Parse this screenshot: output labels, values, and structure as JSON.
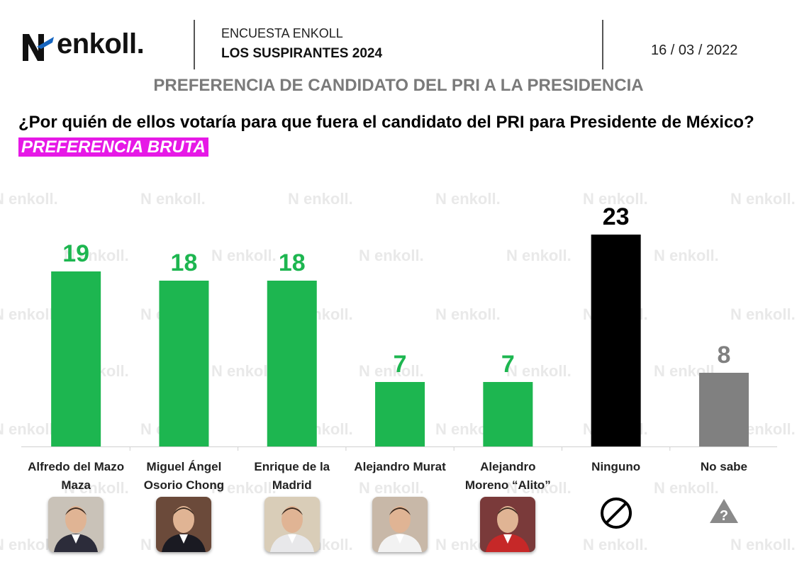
{
  "brand": {
    "logo_text": "enkoll."
  },
  "header": {
    "survey_name": "ENCUESTA ENKOLL",
    "survey_sub": "LOS SUSPIRANTES 2024",
    "date": "16 / 03 / 2022"
  },
  "subtitle": "PREFERENCIA DE CANDIDATO DEL PRI A LA PRESIDENCIA",
  "question": {
    "text": "¿Por quién de ellos votaría para que fuera el candidato del PRI para Presidente de México?",
    "tag": "PREFERENCIA BRUTA"
  },
  "watermark_text": "enkoll.",
  "colors": {
    "green": "#1db650",
    "black": "#000000",
    "gray": "#808080",
    "magenta": "#e619e6"
  },
  "chart_data": {
    "type": "bar",
    "categories": [
      "Alfredo del Mazo Maza",
      "Miguel Ángel Osorio Chong",
      "Enrique de la Madrid",
      "Alejandro Murat",
      "Alejandro Moreno “Alito”",
      "Ninguno",
      "No sabe"
    ],
    "label_lines": [
      [
        "Alfredo del Mazo",
        "Maza"
      ],
      [
        "Miguel Ángel",
        "Osorio Chong"
      ],
      [
        "Enrique de la",
        "Madrid"
      ],
      [
        "Alejandro Murat"
      ],
      [
        "Alejandro",
        "Moreno “Alito”"
      ],
      [
        "Ninguno"
      ],
      [
        "No sabe"
      ]
    ],
    "values": [
      19,
      18,
      18,
      7,
      7,
      23,
      8
    ],
    "bar_colors": [
      "#1db650",
      "#1db650",
      "#1db650",
      "#1db650",
      "#1db650",
      "#000000",
      "#808080"
    ],
    "label_colors": [
      "#1db650",
      "#1db650",
      "#1db650",
      "#1db650",
      "#1db650",
      "#000000",
      "#808080"
    ],
    "icons": [
      "photo",
      "photo",
      "photo",
      "photo",
      "photo",
      "prohibited-icon",
      "question-icon"
    ],
    "ylim": [
      0,
      25
    ],
    "grid": false,
    "xlabel": "",
    "ylabel": ""
  }
}
